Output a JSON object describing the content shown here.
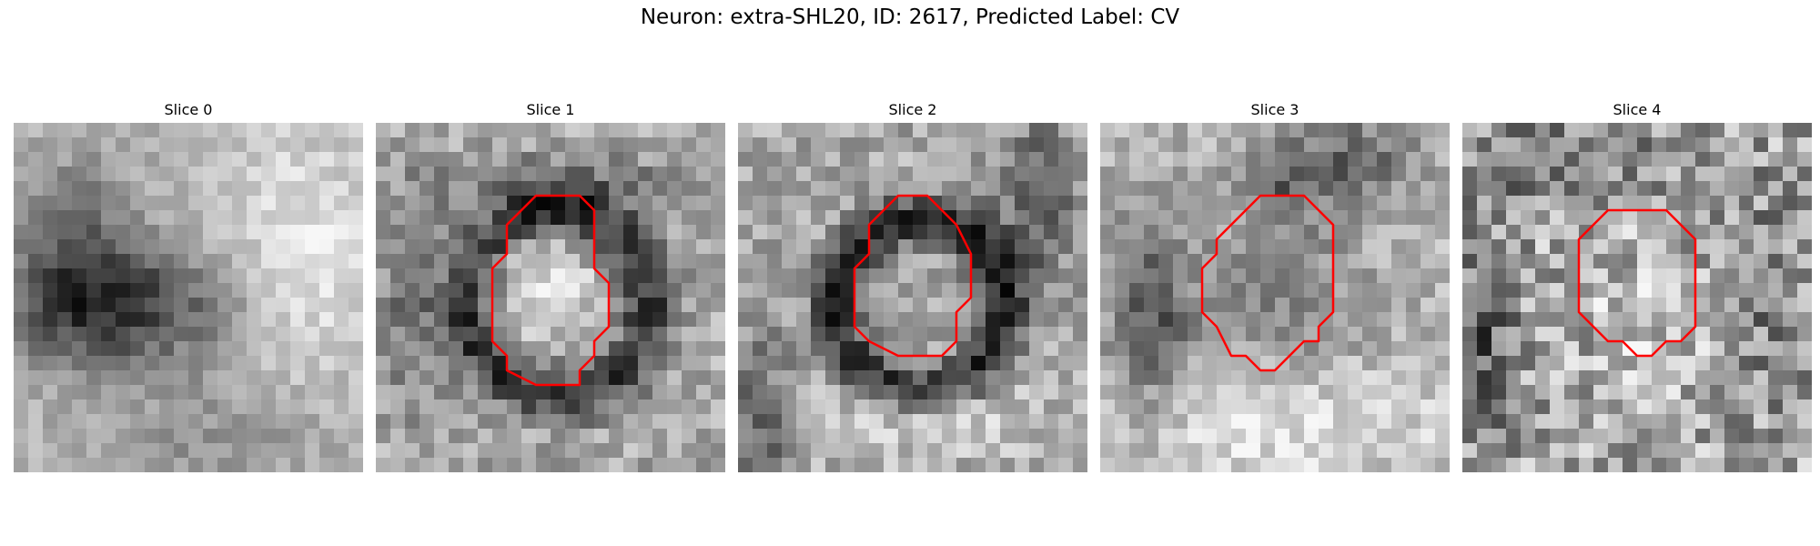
{
  "figure": {
    "title": "Neuron: extra-SHL20, ID: 2617, Predicted Label: CV"
  },
  "slices": [
    {
      "label": "Slice 0",
      "has_contour": false
    },
    {
      "label": "Slice 1",
      "has_contour": true
    },
    {
      "label": "Slice 2",
      "has_contour": true
    },
    {
      "label": "Slice 3",
      "has_contour": true
    },
    {
      "label": "Slice 4",
      "has_contour": true
    }
  ],
  "colors": {
    "contour": "#ff0000",
    "background": "#ffffff"
  }
}
